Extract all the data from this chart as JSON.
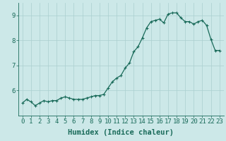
{
  "x": [
    0,
    0.5,
    1,
    1.5,
    2,
    2.5,
    3,
    3.5,
    4,
    4.5,
    5,
    5.5,
    6,
    6.5,
    7,
    7.5,
    8,
    8.5,
    9,
    9.5,
    10,
    10.5,
    11,
    11.5,
    12,
    12.5,
    13,
    13.5,
    14,
    14.5,
    15,
    15.5,
    16,
    16.5,
    17,
    17.5,
    18,
    18.5,
    19,
    19.5,
    20,
    20.5,
    21,
    21.5,
    22,
    22.5,
    23
  ],
  "y": [
    5.5,
    5.65,
    5.55,
    5.4,
    5.5,
    5.6,
    5.55,
    5.6,
    5.6,
    5.7,
    5.75,
    5.7,
    5.65,
    5.65,
    5.65,
    5.7,
    5.75,
    5.8,
    5.8,
    5.85,
    6.1,
    6.35,
    6.5,
    6.6,
    6.9,
    7.1,
    7.55,
    7.75,
    8.1,
    8.5,
    8.75,
    8.8,
    8.85,
    8.7,
    9.05,
    9.1,
    9.1,
    8.9,
    8.75,
    8.75,
    8.65,
    8.75,
    8.8,
    8.6,
    8.05,
    7.6,
    7.6
  ],
  "xlabel": "Humidex (Indice chaleur)",
  "ylim": [
    5.0,
    9.5
  ],
  "xlim": [
    -0.5,
    23.5
  ],
  "yticks": [
    6,
    7,
    8,
    9
  ],
  "xticks": [
    0,
    1,
    2,
    3,
    4,
    5,
    6,
    7,
    8,
    9,
    10,
    11,
    12,
    13,
    14,
    15,
    16,
    17,
    18,
    19,
    20,
    21,
    22,
    23
  ],
  "bg_color": "#cce8e8",
  "line_color": "#1a6b5a",
  "grid_color": "#aacfcf",
  "label_fontsize": 7.5,
  "tick_fontsize": 6.5
}
